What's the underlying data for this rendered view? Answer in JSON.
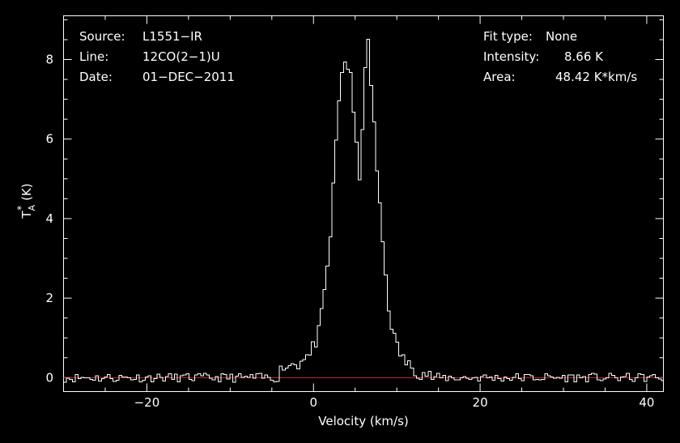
{
  "chart_data": {
    "type": "line",
    "title": "",
    "xlabel": "Velocity (km/s)",
    "ylabel": "T",
    "ylabel_sub": "A",
    "ylabel_sup": "*",
    "ylabel_unit": "(K)",
    "xlim": [
      -30,
      42
    ],
    "ylim": [
      -0.35,
      9.1
    ],
    "xticks": [
      -20,
      0,
      20,
      40
    ],
    "xtick_labels": [
      "−20",
      "0",
      "20",
      "40"
    ],
    "yticks": [
      0,
      2,
      4,
      6,
      8
    ],
    "ytick_labels": [
      "0",
      "2",
      "4",
      "6",
      "8"
    ],
    "grid": false,
    "legend": "none",
    "colors": {
      "background": "#000000",
      "spectrum": "#ffffff",
      "baseline": "#c0282d"
    },
    "baseline": 0,
    "spectrum": {
      "name": "",
      "step_style": "histogram",
      "x": [
        -4.0,
        -3.5,
        -3.0,
        -2.5,
        -2.0,
        -1.5,
        -1.0,
        -0.5,
        0.0,
        0.5,
        1.0,
        1.5,
        2.0,
        2.5,
        3.0,
        3.5,
        4.0,
        4.5,
        5.0,
        5.5,
        6.0,
        6.5,
        7.0,
        7.5,
        8.0,
        8.5,
        9.0,
        9.5,
        10.0,
        10.5,
        11.0,
        11.5,
        12.0,
        12.5,
        13.0,
        13.5,
        14.0
      ],
      "values": [
        0.15,
        0.35,
        0.25,
        0.4,
        0.3,
        0.45,
        0.6,
        0.5,
        0.8,
        1.0,
        1.6,
        2.4,
        3.5,
        5.2,
        6.8,
        7.9,
        7.95,
        7.5,
        6.2,
        5.0,
        6.8,
        8.66,
        7.2,
        5.6,
        4.2,
        3.0,
        1.8,
        1.2,
        0.8,
        0.6,
        0.4,
        0.3,
        0.25,
        0.15,
        0.1,
        0.12,
        0.05
      ]
    },
    "noise_rms": 0.07
  },
  "annotations": {
    "source_label": "Source:",
    "source_value": "L1551−IR",
    "line_label": "Line:",
    "line_value": "12CO(2−1)U",
    "date_label": "Date:",
    "date_value": "01−DEC−2011",
    "fit_label": "Fit type:",
    "fit_value": "None",
    "intensity_label": "Intensity:",
    "intensity_value": "8.66 K",
    "area_label": "Area:",
    "area_value": "48.42 K*km/s"
  }
}
